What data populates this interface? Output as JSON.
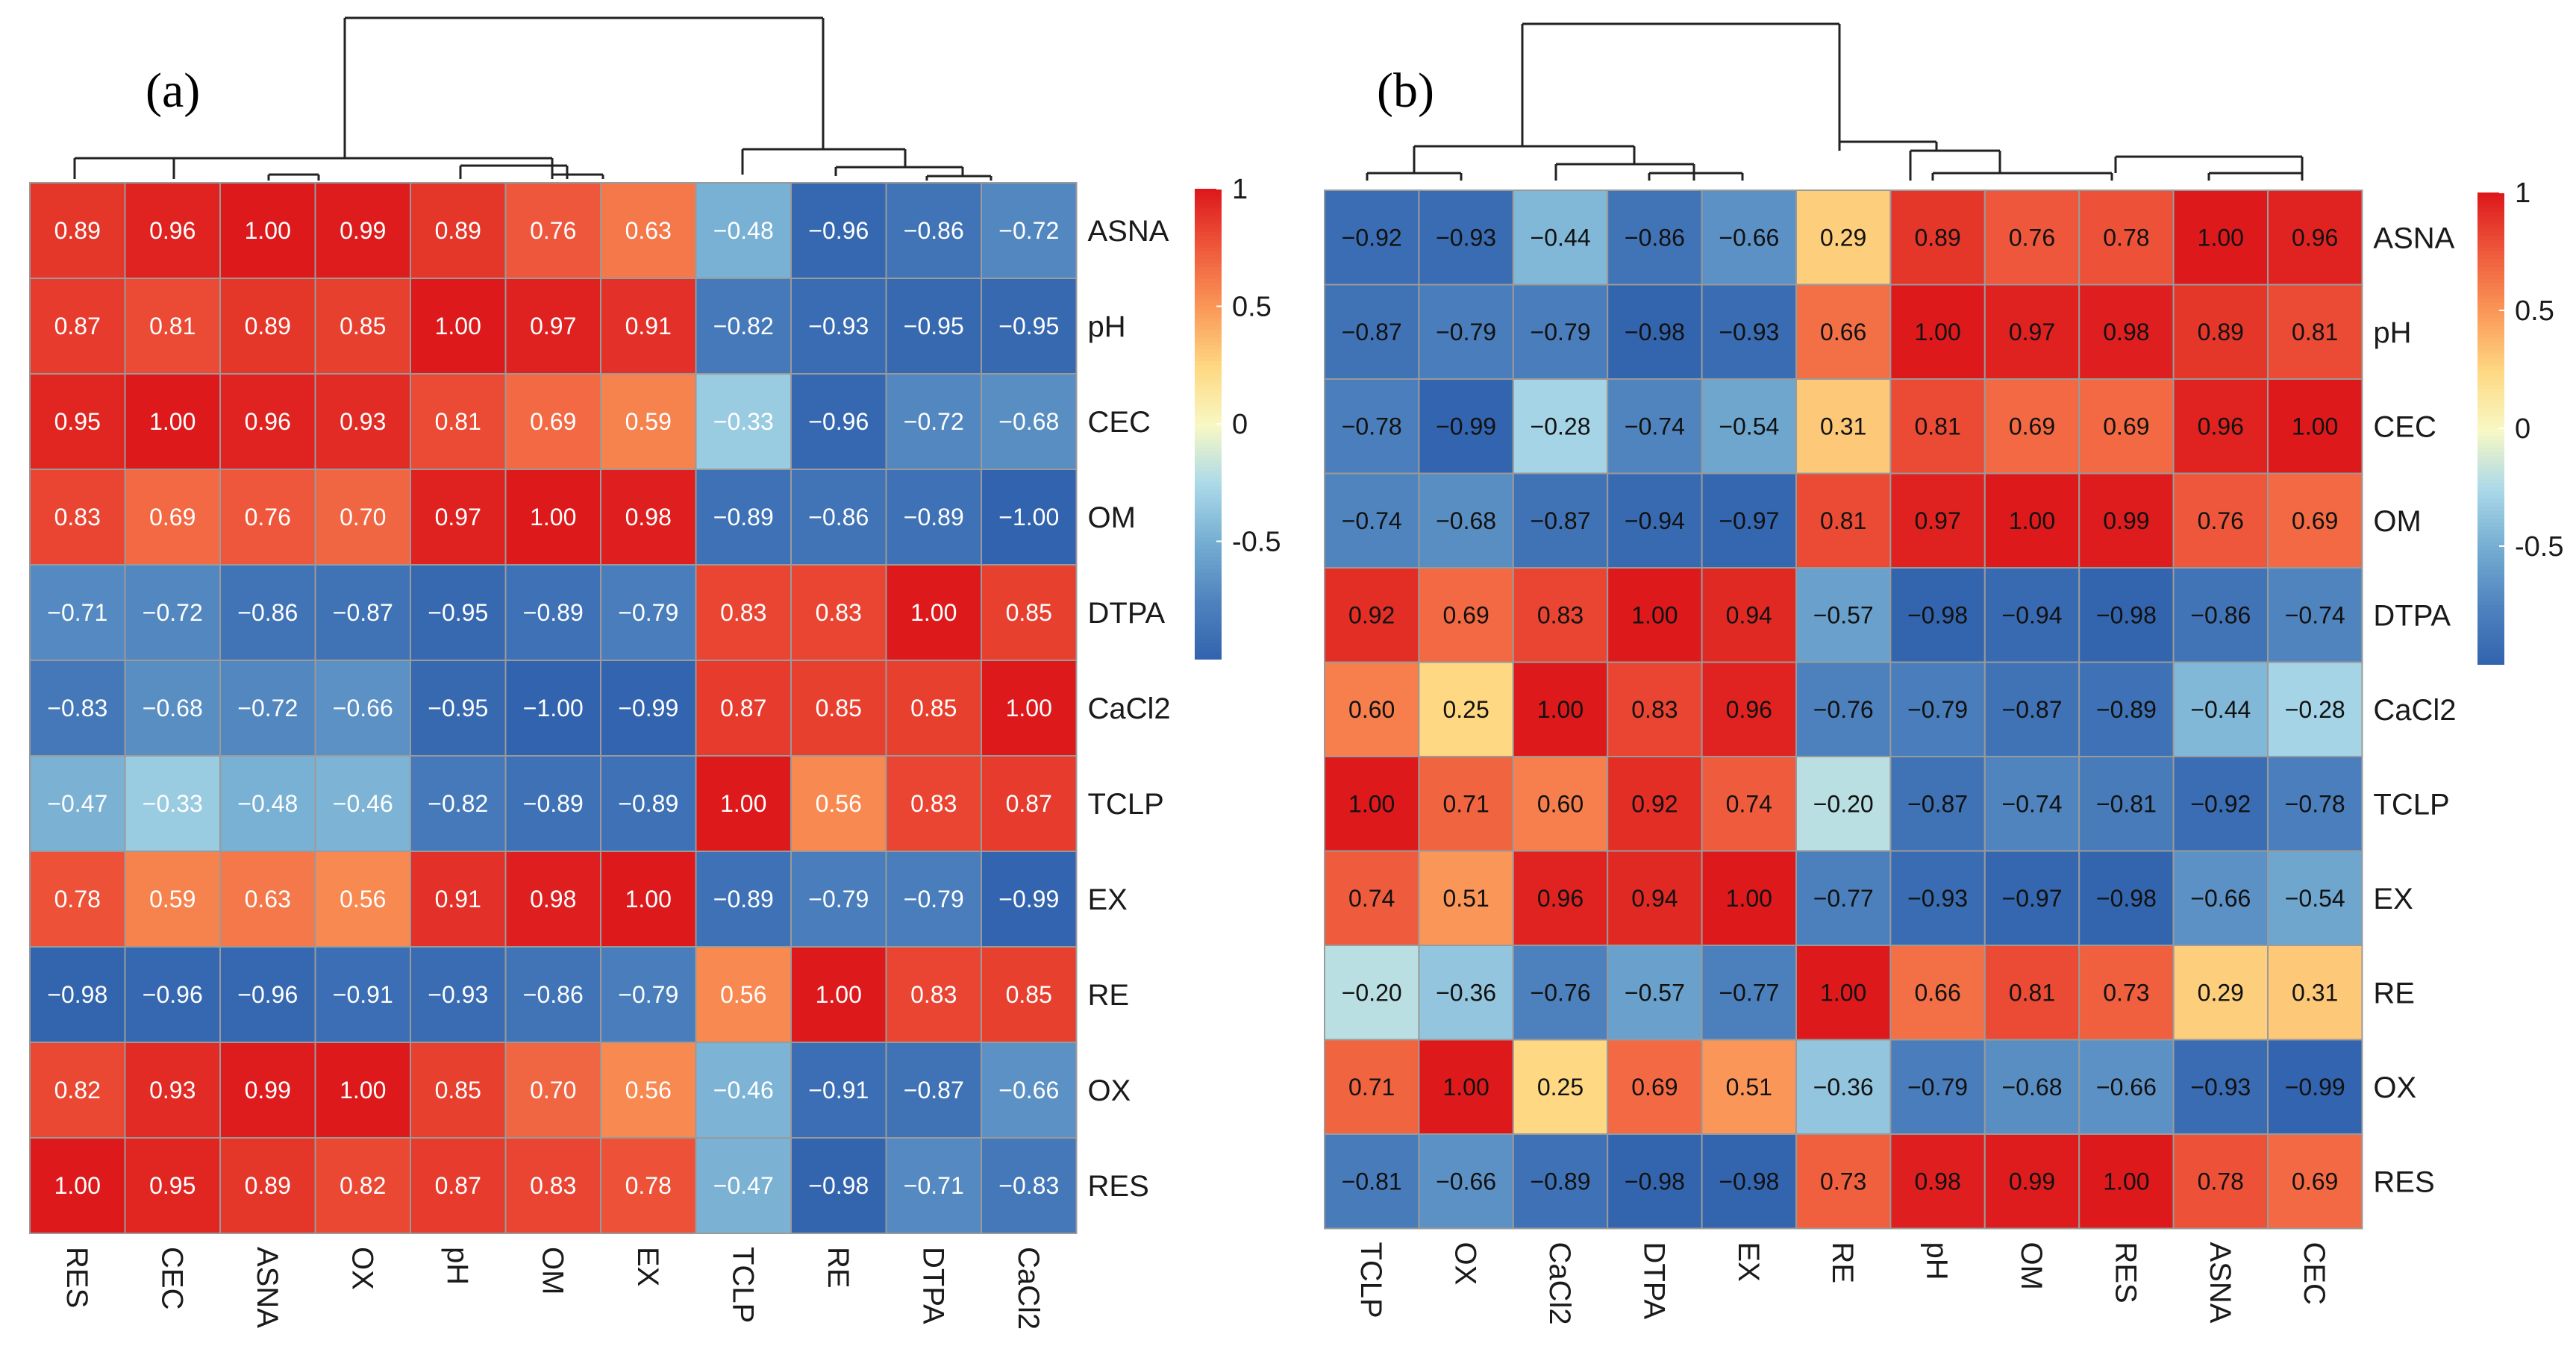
{
  "chart_data": [
    {
      "type": "heatmap",
      "panel_label": "(a)",
      "col_labels": [
        "RES",
        "CEC",
        "ASNA",
        "OX",
        "pH",
        "OM",
        "EX",
        "TCLP",
        "RE",
        "DTPA",
        "CaCl2"
      ],
      "row_labels": [
        "ASNA",
        "pH",
        "CEC",
        "OM",
        "DTPA",
        "CaCl2",
        "TCLP",
        "EX",
        "RE",
        "OX",
        "RES"
      ],
      "values": [
        [
          0.89,
          0.96,
          1.0,
          0.99,
          0.89,
          0.76,
          0.63,
          -0.48,
          -0.96,
          -0.86,
          -0.72
        ],
        [
          0.87,
          0.81,
          0.89,
          0.85,
          1.0,
          0.97,
          0.91,
          -0.82,
          -0.93,
          -0.95,
          -0.95
        ],
        [
          0.95,
          1.0,
          0.96,
          0.93,
          0.81,
          0.69,
          0.59,
          -0.33,
          -0.96,
          -0.72,
          -0.68
        ],
        [
          0.83,
          0.69,
          0.76,
          0.7,
          0.97,
          1.0,
          0.98,
          -0.89,
          -0.86,
          -0.89,
          -1.0
        ],
        [
          -0.71,
          -0.72,
          -0.86,
          -0.87,
          -0.95,
          -0.89,
          -0.79,
          0.83,
          0.83,
          1.0,
          0.85
        ],
        [
          -0.83,
          -0.68,
          -0.72,
          -0.66,
          -0.95,
          -1.0,
          -0.99,
          0.87,
          0.85,
          0.85,
          1.0
        ],
        [
          -0.47,
          -0.33,
          -0.48,
          -0.46,
          -0.82,
          -0.89,
          -0.89,
          1.0,
          0.56,
          0.83,
          0.87
        ],
        [
          0.78,
          0.59,
          0.63,
          0.56,
          0.91,
          0.98,
          1.0,
          -0.89,
          -0.79,
          -0.79,
          -0.99
        ],
        [
          -0.98,
          -0.96,
          -0.96,
          -0.91,
          -0.93,
          -0.86,
          -0.79,
          0.56,
          1.0,
          0.83,
          0.85
        ],
        [
          0.82,
          0.93,
          0.99,
          1.0,
          0.85,
          0.7,
          0.56,
          -0.46,
          -0.91,
          -0.87,
          -0.66
        ],
        [
          1.0,
          0.95,
          0.89,
          0.82,
          0.87,
          0.83,
          0.78,
          -0.47,
          -0.98,
          -0.71,
          -0.83
        ]
      ],
      "value_range": [
        -1,
        1
      ],
      "colorbar_ticks": [
        {
          "value": 1,
          "label": "1"
        },
        {
          "value": 0.5,
          "label": "0.5"
        },
        {
          "value": 0,
          "label": "0"
        },
        {
          "value": -0.5,
          "label": "-0.5"
        }
      ],
      "colorbar_colors": {
        "low": "#3b6fb6",
        "mid": "#f7f3b9",
        "high": "#e31a1c"
      }
    },
    {
      "type": "heatmap",
      "panel_label": "(b)",
      "col_labels": [
        "TCLP",
        "OX",
        "CaCl2",
        "DTPA",
        "EX",
        "RE",
        "pH",
        "OM",
        "RES",
        "ASNA",
        "CEC"
      ],
      "row_labels": [
        "ASNA",
        "pH",
        "CEC",
        "OM",
        "DTPA",
        "CaCl2",
        "TCLP",
        "EX",
        "RE",
        "OX",
        "RES"
      ],
      "values": [
        [
          -0.92,
          -0.93,
          -0.44,
          -0.86,
          -0.66,
          0.29,
          0.89,
          0.76,
          0.78,
          1.0,
          0.96
        ],
        [
          -0.87,
          -0.79,
          -0.79,
          -0.98,
          -0.93,
          0.66,
          1.0,
          0.97,
          0.98,
          0.89,
          0.81
        ],
        [
          -0.78,
          -0.99,
          -0.28,
          -0.74,
          -0.54,
          0.31,
          0.81,
          0.69,
          0.69,
          0.96,
          1.0
        ],
        [
          -0.74,
          -0.68,
          -0.87,
          -0.94,
          -0.97,
          0.81,
          0.97,
          1.0,
          0.99,
          0.76,
          0.69
        ],
        [
          0.92,
          0.69,
          0.83,
          1.0,
          0.94,
          -0.57,
          -0.98,
          -0.94,
          -0.98,
          -0.86,
          -0.74
        ],
        [
          0.6,
          0.25,
          1.0,
          0.83,
          0.96,
          -0.76,
          -0.79,
          -0.87,
          -0.89,
          -0.44,
          -0.28
        ],
        [
          1.0,
          0.71,
          0.6,
          0.92,
          0.74,
          -0.2,
          -0.87,
          -0.74,
          -0.81,
          -0.92,
          -0.78
        ],
        [
          0.74,
          0.51,
          0.96,
          0.94,
          1.0,
          -0.77,
          -0.93,
          -0.97,
          -0.98,
          -0.66,
          -0.54
        ],
        [
          -0.2,
          -0.36,
          -0.76,
          -0.57,
          -0.77,
          1.0,
          0.66,
          0.81,
          0.73,
          0.29,
          0.31
        ],
        [
          0.71,
          1.0,
          0.25,
          0.69,
          0.51,
          -0.36,
          -0.79,
          -0.68,
          -0.66,
          -0.93,
          -0.99
        ],
        [
          -0.81,
          -0.66,
          -0.89,
          -0.98,
          -0.98,
          0.73,
          0.98,
          0.99,
          1.0,
          0.78,
          0.69
        ]
      ],
      "value_range": [
        -1,
        1
      ],
      "colorbar_ticks": [
        {
          "value": 1,
          "label": "1"
        },
        {
          "value": 0.5,
          "label": "0.5"
        },
        {
          "value": 0,
          "label": "0"
        },
        {
          "value": -0.5,
          "label": "-0.5"
        }
      ],
      "colorbar_colors": {
        "low": "#3b6fb6",
        "mid": "#f7f3b9",
        "high": "#e31a1c"
      }
    }
  ]
}
